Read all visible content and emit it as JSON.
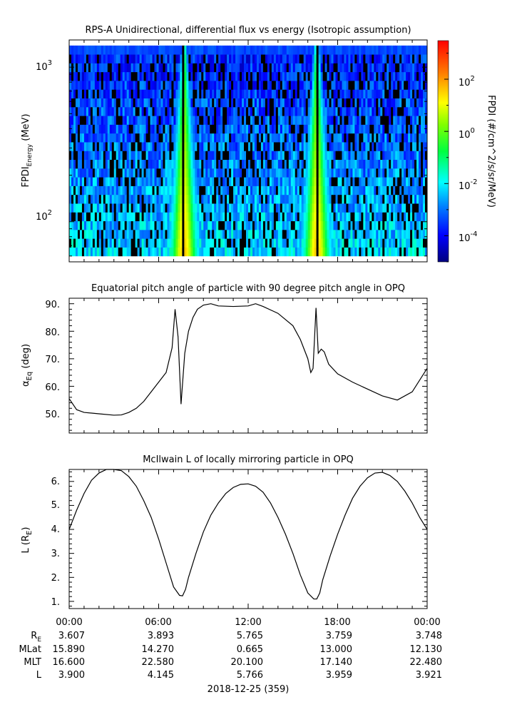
{
  "panel1": {
    "title": "RPS-A Unidirectional, differential flux vs energy (Isotropic assumption)",
    "ylabel_main": "FPDI",
    "ylabel_sub": "Energy",
    "ylabel_unit": " (MeV)",
    "ytick_1000": "10",
    "ytick_1000_exp": "3",
    "ytick_100": "10",
    "ytick_100_exp": "2",
    "colorbar_label": "FPDI (#/cm^2/s/sr/MeV)",
    "colorbar_ticks": [
      {
        "base": "10",
        "exp": "2"
      },
      {
        "base": "10",
        "exp": "0"
      },
      {
        "base": "10",
        "exp": "-2"
      },
      {
        "base": "10",
        "exp": "-4"
      }
    ]
  },
  "panel2": {
    "title": "Equatorial pitch angle of particle with 90 degree pitch angle in OPQ",
    "ylabel": "α",
    "ylabel_sub": "Eq",
    "ylabel_unit": " (deg)",
    "yticks": [
      "90.",
      "80.",
      "70.",
      "60.",
      "50."
    ]
  },
  "panel3": {
    "title": "McIlwain L of locally mirroring particle in OPQ",
    "ylabel": "L (R",
    "ylabel_sub": "E",
    "ylabel_close": ")",
    "yticks": [
      "6.",
      "5.",
      "4.",
      "3.",
      "2.",
      "1."
    ]
  },
  "xaxis": {
    "ticks": [
      "00:00",
      "06:00",
      "12:00",
      "18:00",
      "00:00"
    ],
    "date_label": "2018-12-25 (359)"
  },
  "ephemeris": {
    "rows": [
      {
        "label": "R",
        "sub": "E",
        "values": [
          "3.607",
          "3.893",
          "5.765",
          "3.759",
          "3.748"
        ]
      },
      {
        "label": "MLat",
        "sub": "",
        "values": [
          "15.890",
          "14.270",
          "0.665",
          "13.000",
          "12.130"
        ]
      },
      {
        "label": "MLT",
        "sub": "",
        "values": [
          "16.600",
          "22.580",
          "20.100",
          "17.140",
          "22.480"
        ]
      },
      {
        "label": "L",
        "sub": "",
        "values": [
          "3.900",
          "4.145",
          "5.766",
          "3.959",
          "3.921"
        ]
      }
    ]
  },
  "chart_data": [
    {
      "type": "heatmap",
      "title": "RPS-A Unidirectional, differential flux vs energy (Isotropic assumption)",
      "xlabel": "",
      "ylabel": "FPDI Energy (MeV)",
      "ylog": true,
      "ylim": [
        55,
        1500
      ],
      "x_range_hours": [
        0,
        24
      ],
      "zlabel": "FPDI (#/cm^2/s/sr/MeV)",
      "zlog": true,
      "zlim": [
        1e-05,
        3000
      ],
      "colormap": "rainbow (blue-cyan-green-yellow-red)",
      "enhancements": [
        {
          "center_hour": 7.7,
          "peak_value": 100
        },
        {
          "center_hour": 16.6,
          "peak_value": 100
        }
      ]
    },
    {
      "type": "line",
      "title": "Equatorial pitch angle of particle with 90 degree pitch angle in OPQ",
      "xlabel": "",
      "ylabel": "αEq (deg)",
      "ylim": [
        43,
        92
      ],
      "x": [
        0,
        0.5,
        1,
        2,
        3,
        3.5,
        4,
        4.5,
        5,
        5.5,
        6,
        6.5,
        6.9,
        7.1,
        7.3,
        7.5,
        7.75,
        8,
        8.3,
        8.6,
        9,
        9.5,
        10,
        11,
        12,
        12.5,
        13,
        14,
        15,
        15.5,
        16,
        16.2,
        16.35,
        16.55,
        16.7,
        16.9,
        17.1,
        17.4,
        18,
        19,
        20,
        21,
        22,
        23,
        24
      ],
      "y": [
        55.5,
        51.5,
        50.5,
        50,
        49.5,
        49.6,
        50.5,
        52,
        54.5,
        58,
        61.5,
        65,
        74,
        88,
        78,
        53.5,
        72,
        80,
        85,
        88,
        89.5,
        90,
        89.2,
        89,
        89.2,
        90,
        89,
        86.5,
        82,
        77,
        70,
        65,
        66.5,
        88.5,
        72,
        73.5,
        72.5,
        68,
        64.5,
        61.5,
        59,
        56.5,
        55,
        58,
        66.5
      ]
    },
    {
      "type": "line",
      "title": "McIlwain L of locally mirroring particle in OPQ",
      "xlabel": "",
      "ylabel": "L (RE)",
      "ylim": [
        0.7,
        6.5
      ],
      "x": [
        0,
        0.5,
        1,
        1.5,
        2,
        2.5,
        3,
        3.5,
        4,
        4.5,
        5,
        5.5,
        6,
        6.5,
        7,
        7.4,
        7.6,
        7.8,
        8,
        8.5,
        9,
        9.5,
        10,
        10.5,
        11,
        11.5,
        12,
        12.5,
        13,
        13.5,
        14,
        14.5,
        15,
        15.5,
        16,
        16.4,
        16.6,
        16.8,
        17,
        17.5,
        18,
        18.5,
        19,
        19.5,
        20,
        20.5,
        21,
        21.5,
        22,
        22.5,
        23,
        23.5,
        24
      ],
      "y": [
        4.0,
        4.8,
        5.5,
        6.05,
        6.35,
        6.5,
        6.5,
        6.45,
        6.2,
        5.8,
        5.2,
        4.5,
        3.6,
        2.6,
        1.6,
        1.25,
        1.23,
        1.5,
        2.0,
        3.0,
        3.9,
        4.6,
        5.1,
        5.5,
        5.75,
        5.88,
        5.9,
        5.8,
        5.55,
        5.1,
        4.5,
        3.8,
        3.0,
        2.1,
        1.35,
        1.1,
        1.1,
        1.35,
        1.9,
        2.9,
        3.8,
        4.6,
        5.3,
        5.8,
        6.15,
        6.35,
        6.38,
        6.25,
        6.0,
        5.6,
        5.1,
        4.5,
        4.0
      ]
    }
  ]
}
